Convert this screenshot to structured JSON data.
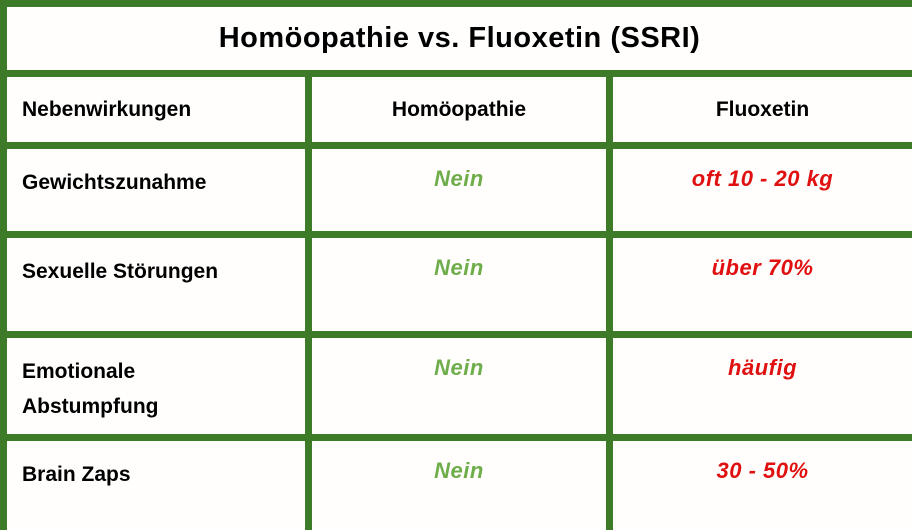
{
  "chart_data": {
    "type": "table",
    "title": "Homöopathie vs. Fluoxetin (SSRI)",
    "columns": [
      "Nebenwirkungen",
      "Homöopathie",
      "Fluoxetin"
    ],
    "rows": [
      [
        "Gewichtszunahme",
        "Nein",
        "oft 10 - 20 kg"
      ],
      [
        "Sexuelle Störungen",
        "Nein",
        "über 70%"
      ],
      [
        "Emotionale Abstumpfung",
        "Nein",
        "häufig"
      ],
      [
        "Brain Zaps",
        "Nein",
        "30 - 50%"
      ]
    ],
    "notes": "Values in the Homöopathie column are green (positive framing); values in the Fluoxetin column are red (negative framing)."
  },
  "colors": {
    "border_green": "#3E7B28",
    "value_green": "#6FAD4B",
    "value_red": "#E01010",
    "text_black": "#000000",
    "background": "#FFFFFF"
  }
}
